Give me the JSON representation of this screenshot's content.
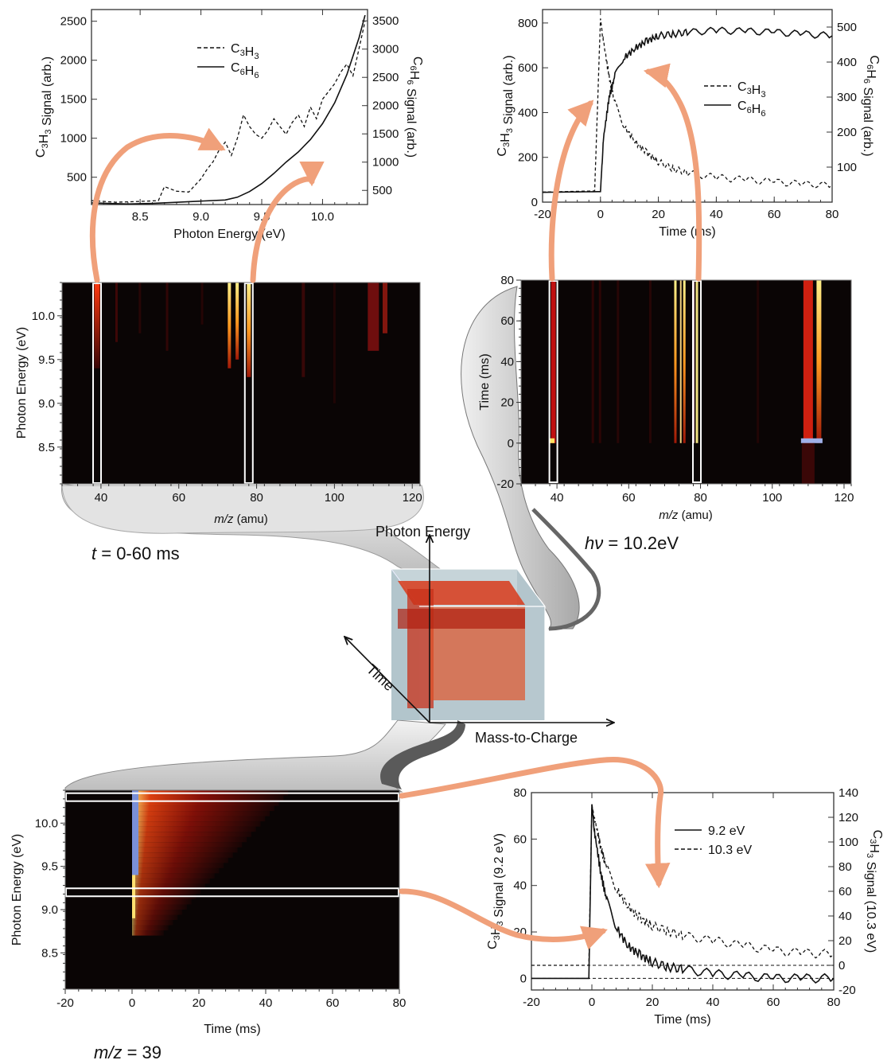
{
  "colors": {
    "arrow": "#f0a07a",
    "ribbon_light": "#d8d8d8",
    "ribbon_dark": "#555555",
    "heatmap_bg": "#0a0505",
    "heat_red": "#b01010",
    "heat_yellow": "#ffe060",
    "heat_blue": "#7a90d8",
    "cube_grey": "#a9bcc4",
    "cube_red": "#d83a1a"
  },
  "cube": {
    "axis_photon_energy": "Photon Energy",
    "axis_time": "Time",
    "axis_mass": "Mass-to-Charge"
  },
  "captions": {
    "top_left_prefix": "t",
    "top_left_rest": " = 0-60 ms",
    "top_right_prefix": "hν",
    "top_right_rest": " = 10.2eV",
    "bottom_left_prefix": "m/z",
    "bottom_left_rest": " = 39"
  },
  "chart_data": [
    {
      "id": "pie_spectra",
      "type": "line",
      "xlabel": "Photon Energy (eV)",
      "ylabel_left": "C3H3 Signal (arb.)",
      "ylabel_right": "C6H6 Signal (arb.)",
      "xlim": [
        8.1,
        10.37
      ],
      "ylim_left": [
        150,
        2650
      ],
      "ylim_right": [
        250,
        3700
      ],
      "xticks": [
        "8.5",
        "9.0",
        "9.5",
        "10.0"
      ],
      "yticks_left": [
        "500",
        "1000",
        "1500",
        "2000",
        "2500"
      ],
      "yticks_right": [
        "500",
        "1000",
        "1500",
        "2000",
        "2500",
        "3000",
        "3500"
      ],
      "series": [
        {
          "name": "C3H3",
          "style": "dashed",
          "axis": "left",
          "x": [
            8.1,
            8.3,
            8.5,
            8.65,
            8.7,
            8.8,
            8.9,
            9.0,
            9.05,
            9.1,
            9.15,
            9.2,
            9.25,
            9.3,
            9.35,
            9.4,
            9.45,
            9.5,
            9.55,
            9.6,
            9.65,
            9.7,
            9.75,
            9.8,
            9.85,
            9.9,
            9.95,
            10.0,
            10.05,
            10.1,
            10.15,
            10.2,
            10.25,
            10.3,
            10.35
          ],
          "y": [
            200,
            180,
            190,
            200,
            380,
            320,
            310,
            480,
            600,
            700,
            850,
            950,
            780,
            1000,
            1300,
            1150,
            1050,
            1000,
            1100,
            1250,
            1150,
            1050,
            1200,
            1300,
            1150,
            1400,
            1250,
            1500,
            1600,
            1700,
            1850,
            1950,
            1800,
            2150,
            2500
          ]
        },
        {
          "name": "C6H6",
          "style": "solid",
          "axis": "right",
          "x": [
            8.1,
            8.4,
            8.6,
            8.8,
            9.0,
            9.2,
            9.3,
            9.4,
            9.5,
            9.6,
            9.7,
            9.8,
            9.9,
            10.0,
            10.1,
            10.2,
            10.3,
            10.35
          ],
          "y": [
            280,
            260,
            270,
            290,
            310,
            330,
            380,
            480,
            620,
            800,
            1000,
            1180,
            1400,
            1680,
            2050,
            2550,
            3200,
            3600
          ]
        }
      ]
    },
    {
      "id": "time_traces_10_2",
      "type": "line",
      "xlabel": "Time (ms)",
      "ylabel_left": "C3H3 Signal (arb.)",
      "ylabel_right": "C6H6 Signal (arb.)",
      "xlim": [
        -20,
        80
      ],
      "ylim_left": [
        0,
        860
      ],
      "ylim_right": [
        0,
        550
      ],
      "xticks": [
        "-20",
        "0",
        "20",
        "40",
        "60",
        "80"
      ],
      "yticks_left": [
        "0",
        "200",
        "400",
        "600",
        "800"
      ],
      "yticks_right": [
        "100",
        "200",
        "300",
        "400",
        "500"
      ],
      "series": [
        {
          "name": "C3H3",
          "style": "dashed",
          "axis": "left",
          "x": [
            -20,
            -2,
            0,
            1,
            3,
            5,
            8,
            12,
            16,
            20,
            25,
            30,
            40,
            50,
            60,
            70,
            80
          ],
          "y": [
            45,
            50,
            820,
            720,
            560,
            440,
            340,
            270,
            220,
            180,
            150,
            130,
            110,
            100,
            90,
            80,
            75
          ]
        },
        {
          "name": "C6H6",
          "style": "solid",
          "axis": "right",
          "x": [
            -20,
            -1,
            0,
            1,
            3,
            5,
            8,
            12,
            16,
            20,
            25,
            30,
            40,
            50,
            60,
            70,
            80
          ],
          "y": [
            28,
            30,
            30,
            180,
            300,
            360,
            410,
            440,
            460,
            475,
            480,
            485,
            490,
            488,
            485,
            480,
            475
          ]
        }
      ]
    },
    {
      "id": "time_traces_mz39",
      "type": "line",
      "xlabel": "Time (ms)",
      "ylabel_left": "C3H3 Signal (9.2 eV)",
      "ylabel_right": "C3H3 Signal (10.3 eV)",
      "xlim": [
        -20,
        80
      ],
      "ylim_left": [
        -5,
        80
      ],
      "ylim_right": [
        -20,
        140
      ],
      "xticks": [
        "-20",
        "0",
        "20",
        "40",
        "60",
        "80"
      ],
      "yticks_left": [
        "0",
        "20",
        "40",
        "60",
        "80"
      ],
      "yticks_right": [
        "-20",
        "0",
        "20",
        "40",
        "60",
        "80",
        "100",
        "120",
        "140"
      ],
      "series": [
        {
          "name": "9.2 eV",
          "style": "solid",
          "axis": "left",
          "x": [
            -20,
            -1,
            0,
            1,
            3,
            5,
            8,
            12,
            16,
            20,
            25,
            30,
            40,
            50,
            60,
            70,
            80
          ],
          "y": [
            0,
            0,
            75,
            62,
            45,
            33,
            22,
            14,
            10,
            7,
            5,
            4,
            2,
            1,
            0,
            0,
            0
          ]
        },
        {
          "name": "10.3 eV",
          "style": "dashed",
          "axis": "right",
          "x": [
            -20,
            -1,
            0,
            1,
            3,
            5,
            8,
            12,
            16,
            20,
            25,
            30,
            40,
            50,
            60,
            70,
            80
          ],
          "y": [
            0,
            0,
            130,
            118,
            95,
            78,
            62,
            48,
            38,
            32,
            28,
            24,
            20,
            16,
            12,
            10,
            9
          ]
        }
      ]
    },
    {
      "id": "heatmap_mz_energy",
      "type": "heatmap",
      "xlabel": "m/z (amu)",
      "ylabel": "Photon Energy (eV)",
      "xlim": [
        30,
        122
      ],
      "ylim": [
        8.08,
        10.38
      ],
      "xticks": [
        "40",
        "60",
        "80",
        "100",
        "120"
      ],
      "yticks": [
        "8.5",
        "9.0",
        "9.5",
        "10.0"
      ],
      "highlight_mz": [
        39,
        78
      ]
    },
    {
      "id": "heatmap_mz_time",
      "type": "heatmap",
      "xlabel": "m/z (amu)",
      "ylabel": "Time (ms)",
      "xlim": [
        30,
        122
      ],
      "ylim": [
        -20,
        80
      ],
      "xticks": [
        "40",
        "60",
        "80",
        "100",
        "120"
      ],
      "yticks": [
        "-20",
        "0",
        "20",
        "40",
        "60",
        "80"
      ],
      "highlight_mz": [
        39,
        79
      ]
    },
    {
      "id": "heatmap_time_energy",
      "type": "heatmap",
      "xlabel": "Time (ms)",
      "ylabel": "Photon Energy (eV)",
      "xlim": [
        -20,
        80
      ],
      "ylim": [
        8.08,
        10.38
      ],
      "xticks": [
        "-20",
        "0",
        "20",
        "40",
        "60",
        "80"
      ],
      "yticks": [
        "8.5",
        "9.0",
        "9.5",
        "10.0"
      ],
      "highlight_energy": [
        10.3,
        9.2
      ]
    }
  ]
}
